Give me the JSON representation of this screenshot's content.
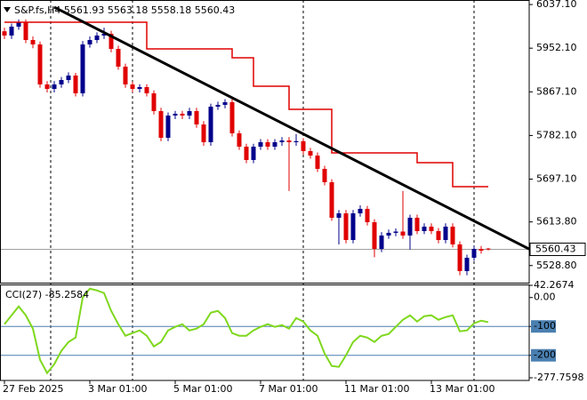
{
  "chart_data": [
    {
      "type": "candlestick",
      "title": "S&P.fs,H4  5561.93 5563.18 5558.18 5560.43",
      "up_color": "#00008b",
      "down_color": "#e00000",
      "ylim": [
        5495.5,
        6045.9
      ],
      "yticks": [
        {
          "value": 6037.1,
          "label": "6037.10"
        },
        {
          "value": 5952.1,
          "label": "5952.10"
        },
        {
          "value": 5867.1,
          "label": "5867.10"
        },
        {
          "value": 5782.1,
          "label": "5782.10"
        },
        {
          "value": 5697.1,
          "label": "5697.10"
        },
        {
          "value": 5613.8,
          "label": "5613.80"
        },
        {
          "value": 5528.8,
          "label": "5528.80"
        }
      ],
      "current_price": 5560.43,
      "xticks": [
        {
          "value": 0,
          "label": "27 Feb 2025"
        },
        {
          "value": 12,
          "label": "3 Mar 01:00"
        },
        {
          "value": 24,
          "label": "5 Mar 01:00"
        },
        {
          "value": 36,
          "label": "7 Mar 01:00"
        },
        {
          "value": 48,
          "label": "11 Mar 01:00"
        },
        {
          "value": 60,
          "label": "13 Mar 01:00"
        }
      ],
      "candles": [
        [
          5985.0,
          5992.0,
          5970.0,
          5976.7
        ],
        [
          5976.7,
          6000.0,
          5970.0,
          5994.0
        ],
        [
          5994.0,
          6008.0,
          5988.0,
          6002.6
        ],
        [
          6002.6,
          6008.0,
          5962.0,
          5968.0
        ],
        [
          5968.0,
          5975.0,
          5952.0,
          5959.4
        ],
        [
          5959.4,
          5965.0,
          5875.0,
          5881.5
        ],
        [
          5881.5,
          5888.0,
          5866.0,
          5872.8
        ],
        [
          5872.8,
          5888.0,
          5866.0,
          5881.5
        ],
        [
          5881.5,
          5896.0,
          5875.0,
          5890.1
        ],
        [
          5890.1,
          5905.0,
          5884.0,
          5898.8
        ],
        [
          5898.8,
          5904.0,
          5858.0,
          5864.2
        ],
        [
          5864.2,
          5966.0,
          5858.0,
          5959.4
        ],
        [
          5959.4,
          5975.0,
          5953.0,
          5968.0
        ],
        [
          5968.0,
          5983.0,
          5962.0,
          5976.7
        ],
        [
          5976.7,
          5992.0,
          5970.0,
          5980.1
        ],
        [
          5980.1,
          5986.0,
          5944.0,
          5950.7
        ],
        [
          5950.7,
          5957.0,
          5910.0,
          5916.1
        ],
        [
          5916.1,
          5922.0,
          5875.0,
          5881.5
        ],
        [
          5881.5,
          5887.0,
          5866.0,
          5872.8
        ],
        [
          5872.8,
          5882.0,
          5866.0,
          5876.3
        ],
        [
          5876.3,
          5882.0,
          5858.0,
          5864.2
        ],
        [
          5864.2,
          5870.0,
          5823.0,
          5829.6
        ],
        [
          5829.6,
          5836.0,
          5771.0,
          5777.6
        ],
        [
          5777.6,
          5827.0,
          5771.0,
          5820.9
        ],
        [
          5820.9,
          5830.0,
          5814.0,
          5824.4
        ],
        [
          5824.4,
          5830.0,
          5814.0,
          5820.9
        ],
        [
          5820.9,
          5836.0,
          5814.0,
          5829.6
        ],
        [
          5829.6,
          5836.0,
          5797.0,
          5803.6
        ],
        [
          5803.6,
          5810.0,
          5762.0,
          5769.0
        ],
        [
          5769.0,
          5844.0,
          5762.0,
          5838.2
        ],
        [
          5838.2,
          5848.0,
          5832.0,
          5841.7
        ],
        [
          5841.7,
          5853.0,
          5835.0,
          5846.9
        ],
        [
          5846.9,
          5853.0,
          5780.0,
          5786.3
        ],
        [
          5786.3,
          5792.0,
          5754.0,
          5760.3
        ],
        [
          5760.3,
          5766.0,
          5728.0,
          5734.4
        ],
        [
          5734.4,
          5766.0,
          5728.0,
          5760.3
        ],
        [
          5760.3,
          5775.0,
          5754.0,
          5769.0
        ],
        [
          5769.0,
          5775.0,
          5754.0,
          5760.3
        ],
        [
          5760.3,
          5775.0,
          5754.0,
          5769.0
        ],
        [
          5769.0,
          5779.0,
          5762.0,
          5772.4
        ],
        [
          5772.4,
          5779.0,
          5674.0,
          5769.0
        ],
        [
          5769.0,
          5785.0,
          5762.0,
          5771.0
        ],
        [
          5771.0,
          5777.0,
          5745.0,
          5751.7
        ],
        [
          5751.7,
          5758.0,
          5737.0,
          5743.0
        ],
        [
          5743.0,
          5749.0,
          5711.0,
          5717.1
        ],
        [
          5717.1,
          5723.0,
          5685.0,
          5691.1
        ],
        [
          5691.1,
          5697.0,
          5616.0,
          5621.9
        ],
        [
          5621.9,
          5637.0,
          5570.0,
          5630.5
        ],
        [
          5630.5,
          5637.0,
          5572.0,
          5578.6
        ],
        [
          5578.6,
          5637.0,
          5572.0,
          5630.5
        ],
        [
          5630.5,
          5646.0,
          5624.0,
          5639.2
        ],
        [
          5639.2,
          5645.0,
          5607.0,
          5613.2
        ],
        [
          5613.2,
          5619.0,
          5545.0,
          5561.3
        ],
        [
          5561.3,
          5594.0,
          5555.0,
          5587.3
        ],
        [
          5587.3,
          5599.0,
          5581.0,
          5592.5
        ],
        [
          5592.5,
          5601.0,
          5586.0,
          5595.0
        ],
        [
          5595.0,
          5674.0,
          5581.0,
          5587.3
        ],
        [
          5587.3,
          5628.0,
          5560.0,
          5621.9
        ],
        [
          5621.9,
          5628.0,
          5590.0,
          5595.9
        ],
        [
          5595.9,
          5611.0,
          5590.0,
          5604.6
        ],
        [
          5604.6,
          5611.0,
          5590.0,
          5595.9
        ],
        [
          5595.9,
          5602.0,
          5572.0,
          5578.6
        ],
        [
          5578.6,
          5611.0,
          5572.0,
          5604.6
        ],
        [
          5604.6,
          5611.0,
          5564.0,
          5570.0
        ],
        [
          5570.0,
          5576.0,
          5510.0,
          5518.0
        ],
        [
          5518.0,
          5550.0,
          5510.0,
          5544.0
        ],
        [
          5544.0,
          5567.0,
          5538.0,
          5561.3
        ],
        [
          5561.3,
          5567.0,
          5552.0,
          5557.8
        ],
        [
          5561.93,
          5563.18,
          5558.18,
          5560.43
        ]
      ],
      "lines": [
        {
          "color": "#e00000",
          "width": 1.5,
          "x": [
            0,
            20,
            20,
            32,
            32,
            35,
            35,
            40,
            40,
            46,
            46,
            58,
            58,
            63,
            63,
            68
          ],
          "values": [
            6002.6,
            6002.6,
            5950.7,
            5950.7,
            5933.4,
            5933.4,
            5878.0,
            5878.0,
            5833.0,
            5833.0,
            5748.2,
            5748.2,
            5729.2,
            5729.2,
            5682.5,
            5682.5
          ]
        },
        {
          "color": "#000000",
          "width": 3,
          "x": [
            7,
            73.75
          ],
          "values": [
            6032.0,
            5561.0
          ]
        }
      ]
    },
    {
      "type": "line",
      "title": "CCI(27) -85.2584",
      "color": "#7fd81e",
      "ylim": [
        -277.7598,
        42.2674
      ],
      "yticks": [
        42.2674,
        {
          "value": 0,
          "label": "0.00"
        },
        -100,
        -200,
        -277.7598
      ],
      "levels": [
        -100,
        -200
      ],
      "level_color": "#4a7fb0",
      "values": [
        -92.3,
        -61.5,
        -30.8,
        -61.5,
        -107.7,
        -215.4,
        -261.5,
        -230.8,
        -184.6,
        -153.8,
        -138.5,
        0,
        30.8,
        24.6,
        15.4,
        -46.2,
        -92.3,
        -132.3,
        -123.1,
        -113.8,
        -132.3,
        -169.2,
        -153.8,
        -113.8,
        -101.5,
        -92.3,
        -113.8,
        -107.7,
        -92.3,
        -52.3,
        -46.2,
        -70.8,
        -123.1,
        -132.3,
        -132.3,
        -113.8,
        -101.5,
        -92.3,
        -101.5,
        -95.4,
        -107.7,
        -70.8,
        -83.1,
        -113.8,
        -132.3,
        -193.8,
        -236.9,
        -240.0,
        -200.0,
        -153.8,
        -132.3,
        -138.5,
        -153.8,
        -132.3,
        -126.2,
        -101.5,
        -76.9,
        -61.5,
        -83.1,
        -64.6,
        -61.5,
        -76.9,
        -67.7,
        -61.5,
        -116.9,
        -113.8,
        -89.2,
        -80.0,
        -85.2584
      ]
    }
  ]
}
